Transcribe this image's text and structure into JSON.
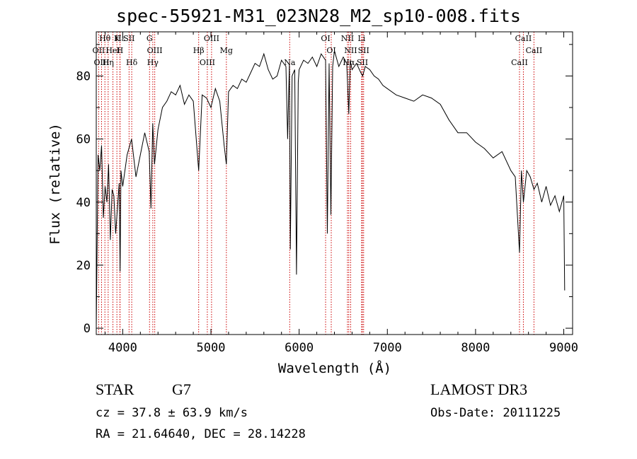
{
  "chart_data": {
    "type": "line",
    "title": "spec-55921-M31_023N28_M2_sp10-008.fits",
    "xlabel": "Wavelength (Å)",
    "ylabel": "Flux (relative)",
    "xlim": [
      3700,
      9100
    ],
    "ylim": [
      -2,
      94
    ],
    "xticks": [
      4000,
      5000,
      6000,
      7000,
      8000,
      9000
    ],
    "yticks": [
      0,
      20,
      40,
      60,
      80
    ],
    "series": [
      {
        "name": "spectrum",
        "x": [
          3700,
          3720,
          3740,
          3760,
          3780,
          3800,
          3820,
          3840,
          3860,
          3880,
          3900,
          3920,
          3940,
          3960,
          3970,
          3980,
          4000,
          4050,
          4100,
          4150,
          4200,
          4250,
          4300,
          4320,
          4340,
          4360,
          4400,
          4450,
          4500,
          4550,
          4600,
          4650,
          4700,
          4750,
          4800,
          4861,
          4900,
          4950,
          5000,
          5050,
          5100,
          5150,
          5175,
          5200,
          5250,
          5300,
          5350,
          5400,
          5450,
          5500,
          5550,
          5600,
          5650,
          5700,
          5750,
          5800,
          5850,
          5870,
          5890,
          5900,
          5920,
          5950,
          5970,
          5990,
          6000,
          6050,
          6100,
          6150,
          6200,
          6250,
          6300,
          6320,
          6340,
          6360,
          6380,
          6400,
          6450,
          6500,
          6540,
          6563,
          6580,
          6600,
          6650,
          6700,
          6720,
          6750,
          6800,
          6850,
          6900,
          6950,
          7000,
          7100,
          7200,
          7300,
          7400,
          7500,
          7600,
          7700,
          7800,
          7900,
          8000,
          8100,
          8200,
          8300,
          8400,
          8450,
          8498,
          8520,
          8542,
          8580,
          8620,
          8662,
          8700,
          8750,
          8800,
          8850,
          8900,
          8950,
          9000,
          9010
        ],
        "y": [
          0,
          55,
          50,
          58,
          35,
          45,
          40,
          52,
          28,
          44,
          42,
          30,
          38,
          46,
          18,
          50,
          45,
          55,
          60,
          48,
          55,
          62,
          56,
          38,
          65,
          52,
          63,
          70,
          72,
          75,
          74,
          77,
          71,
          74,
          72,
          50,
          74,
          73,
          70,
          76,
          72,
          58,
          52,
          75,
          77,
          76,
          79,
          78,
          81,
          84,
          83,
          87,
          82,
          79,
          80,
          85,
          83,
          60,
          84,
          25,
          80,
          82,
          17,
          78,
          82,
          85,
          84,
          86,
          83,
          87,
          85,
          30,
          84,
          36,
          83,
          88,
          83,
          86,
          84,
          68,
          85,
          82,
          84,
          81,
          80,
          83,
          82,
          80,
          79,
          77,
          76,
          74,
          73,
          72,
          74,
          73,
          71,
          66,
          62,
          62,
          59,
          57,
          54,
          56,
          50,
          48,
          24,
          50,
          40,
          50,
          48,
          44,
          46,
          40,
          45,
          39,
          42,
          37,
          42,
          12
        ],
        "color": "#000000"
      }
    ],
    "lines": [
      {
        "name": "Hθ",
        "x": 3798
      },
      {
        "name": "OII",
        "x": 3727
      },
      {
        "name": "OIII",
        "x": 3760
      },
      {
        "name": "K",
        "x": 3934
      },
      {
        "name": "HeI",
        "x": 3889
      },
      {
        "name": "Hη",
        "x": 3835
      },
      {
        "name": "Hε",
        "x": 3970
      },
      {
        "name": "H",
        "x": 3968
      },
      {
        "name": "Hδ",
        "x": 4102
      },
      {
        "name": "SII",
        "x": 4072
      },
      {
        "name": "OIII",
        "x": 4363
      },
      {
        "name": "Hγ",
        "x": 4341
      },
      {
        "name": "G",
        "x": 4304
      },
      {
        "name": "Hβ",
        "x": 4861
      },
      {
        "name": "OIII",
        "x": 4959
      },
      {
        "name": "OIII",
        "x": 5007
      },
      {
        "name": "Mg",
        "x": 5175
      },
      {
        "name": "Na",
        "x": 5893
      },
      {
        "name": "OI",
        "x": 6300
      },
      {
        "name": "OI",
        "x": 6364
      },
      {
        "name": "Hα",
        "x": 6563
      },
      {
        "name": "NII",
        "x": 6548
      },
      {
        "name": "NII",
        "x": 6584
      },
      {
        "name": "SII",
        "x": 6717
      },
      {
        "name": "Li",
        "x": 6708
      },
      {
        "name": "SII",
        "x": 6731
      },
      {
        "name": "CaII",
        "x": 8498
      },
      {
        "name": "CaII",
        "x": 8542
      },
      {
        "name": "CaII",
        "x": 8662
      }
    ],
    "line_color": "#cc0000"
  },
  "info": {
    "class_label": "STAR",
    "subclass": "G7",
    "survey": "LAMOST DR3",
    "cz": "cz = 37.8 ± 63.9 km/s",
    "obs_date": "Obs-Date: 20111225",
    "coords": "RA =  21.64640, DEC =  28.14228"
  }
}
